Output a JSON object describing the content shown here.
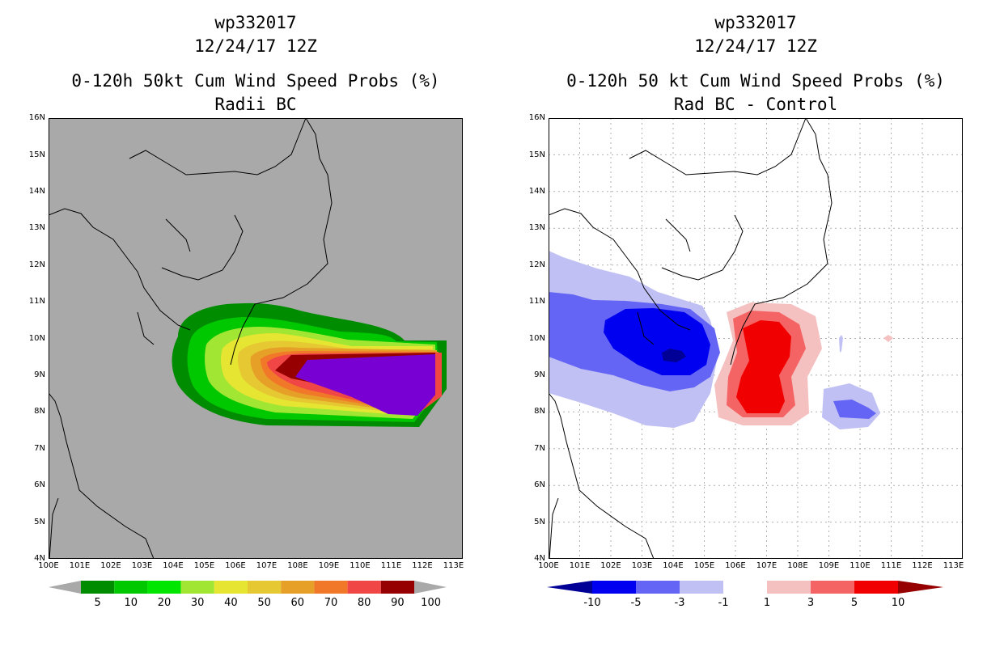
{
  "left_panel": {
    "storm_id": "wp332017",
    "datetime": "12/24/17 12Z",
    "product": "0-120h 50kt Cum Wind Speed Probs (%)",
    "subtitle": "Radii BC",
    "colorbar": {
      "labels": [
        "5",
        "10",
        "20",
        "30",
        "40",
        "50",
        "60",
        "70",
        "80",
        "90",
        "100"
      ],
      "colors": [
        "#008c00",
        "#00c800",
        "#00e600",
        "#a0e632",
        "#e6e632",
        "#e6c832",
        "#e6a028",
        "#f07828",
        "#f04646",
        "#960000",
        "#7800d2"
      ]
    }
  },
  "right_panel": {
    "storm_id": "wp332017",
    "datetime": "12/24/17 12Z",
    "product": "0-120h 50 kt Cum Wind Speed Probs (%)",
    "subtitle": "Rad BC - Control",
    "colorbar": {
      "labels": [
        "-10",
        "-5",
        "-3",
        "-1",
        "1",
        "3",
        "5",
        "10"
      ],
      "colors": [
        "#000096",
        "#0000f0",
        "#6464f5",
        "#c0c0f5",
        "#ffffff",
        "#f5c0c0",
        "#f56464",
        "#f00000",
        "#960000"
      ]
    }
  },
  "axes": {
    "lat_labels": [
      "4N",
      "5N",
      "6N",
      "7N",
      "8N",
      "9N",
      "10N",
      "11N",
      "12N",
      "13N",
      "14N",
      "15N",
      "16N"
    ],
    "lon_labels": [
      "100E",
      "101E",
      "102E",
      "103E",
      "104E",
      "105E",
      "106E",
      "107E",
      "108E",
      "109E",
      "110E",
      "111E",
      "112E",
      "113E"
    ]
  },
  "chart_data": [
    {
      "type": "heatmap",
      "title": "0-120h 50kt Cum Wind Speed Probs (%)",
      "subtitle": "Radii BC",
      "xlim": [
        100,
        113.3
      ],
      "ylim": [
        4,
        16
      ],
      "levels": [
        5,
        10,
        20,
        30,
        40,
        50,
        60,
        70,
        80,
        90,
        100
      ],
      "max_prob_region": {
        "lon": [
          108,
          112.7
        ],
        "lat": [
          8,
          9.6
        ]
      }
    },
    {
      "type": "heatmap",
      "title": "0-120h 50 kt Cum Wind Speed Probs (%)",
      "subtitle": "Rad BC - Control",
      "xlim": [
        100,
        113.3
      ],
      "ylim": [
        4,
        16
      ],
      "levels": [
        -10,
        -5,
        -3,
        -1,
        1,
        3,
        5,
        10
      ],
      "min_center": {
        "lon": 104.2,
        "lat": 9.6,
        "value": "<-10"
      },
      "max_center": {
        "lon": 107.2,
        "lat": 9.2,
        "value": ">5"
      }
    }
  ]
}
